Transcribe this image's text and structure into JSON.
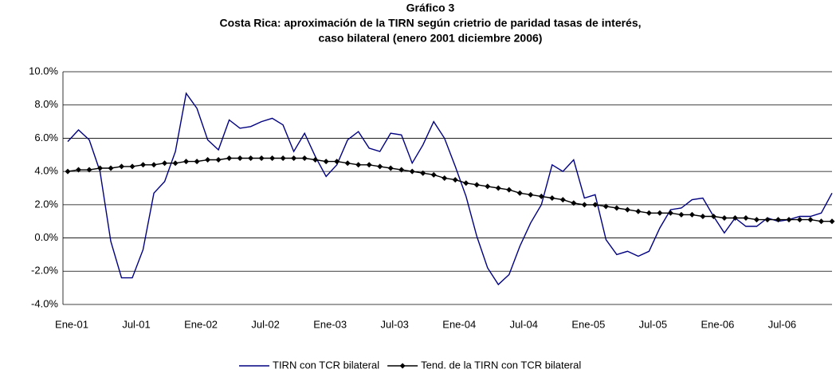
{
  "chart_data": {
    "type": "line",
    "title": "Gráfico 3",
    "subtitle": [
      "Costa Rica: aproximación de la TIRN según crietrio de paridad tasas de interés,",
      "caso bilateral (enero 2001 diciembre 2006)"
    ],
    "categories": [
      "Ene-01",
      null,
      null,
      null,
      null,
      null,
      "Jul-01",
      null,
      null,
      null,
      null,
      null,
      "Ene-02",
      null,
      null,
      null,
      null,
      null,
      "Jul-02",
      null,
      null,
      null,
      null,
      null,
      "Ene-03",
      null,
      null,
      null,
      null,
      null,
      "Jul-03",
      null,
      null,
      null,
      null,
      null,
      "Ene-04",
      null,
      null,
      null,
      null,
      null,
      "Jul-04",
      null,
      null,
      null,
      null,
      null,
      "Ene-05",
      null,
      null,
      null,
      null,
      null,
      "Jul-05",
      null,
      null,
      null,
      null,
      null,
      "Ene-06",
      null,
      null,
      null,
      null,
      null,
      "Jul-06",
      null,
      null,
      null,
      null,
      null
    ],
    "series": [
      {
        "name": "TIRN con TCR bilateral",
        "color": "#000080",
        "marker": false,
        "values": [
          5.8,
          6.5,
          5.9,
          4.0,
          -0.2,
          -2.4,
          -2.4,
          -0.7,
          2.7,
          3.4,
          5.2,
          8.7,
          7.8,
          5.9,
          5.3,
          7.1,
          6.6,
          6.7,
          7.0,
          7.2,
          6.8,
          5.2,
          6.3,
          4.9,
          3.7,
          4.4,
          5.9,
          6.4,
          5.4,
          5.2,
          6.3,
          6.2,
          4.5,
          5.6,
          7.0,
          6.0,
          4.3,
          2.5,
          0.1,
          -1.8,
          -2.8,
          -2.2,
          -0.5,
          0.9,
          2.0,
          4.4,
          4.0,
          4.7,
          2.4,
          2.6,
          -0.1,
          -1.0,
          -0.8,
          -1.1,
          -0.8,
          0.6,
          1.7,
          1.8,
          2.3,
          2.4,
          1.3,
          0.3,
          1.2,
          0.7,
          0.7,
          1.2,
          1.0,
          1.1,
          1.3,
          1.3,
          1.5,
          2.7
        ]
      },
      {
        "name": "Tend. de la TIRN con TCR bilateral",
        "color": "#000000",
        "marker": true,
        "values": [
          4.0,
          4.1,
          4.1,
          4.2,
          4.2,
          4.3,
          4.3,
          4.4,
          4.4,
          4.5,
          4.5,
          4.6,
          4.6,
          4.7,
          4.7,
          4.8,
          4.8,
          4.8,
          4.8,
          4.8,
          4.8,
          4.8,
          4.8,
          4.7,
          4.6,
          4.6,
          4.5,
          4.4,
          4.4,
          4.3,
          4.2,
          4.1,
          4.0,
          3.9,
          3.8,
          3.6,
          3.5,
          3.3,
          3.2,
          3.1,
          3.0,
          2.9,
          2.7,
          2.6,
          2.5,
          2.4,
          2.3,
          2.1,
          2.0,
          2.0,
          1.9,
          1.8,
          1.7,
          1.6,
          1.5,
          1.5,
          1.5,
          1.4,
          1.4,
          1.3,
          1.3,
          1.2,
          1.2,
          1.2,
          1.1,
          1.1,
          1.1,
          1.1,
          1.1,
          1.1,
          1.0,
          1.0
        ]
      }
    ],
    "ylim": [
      -4,
      10
    ],
    "yticks": [
      {
        "value": -4,
        "label": "-4.0%"
      },
      {
        "value": -2,
        "label": "-2.0%"
      },
      {
        "value": 0,
        "label": "0.0%"
      },
      {
        "value": 2,
        "label": "2.0%"
      },
      {
        "value": 4,
        "label": "4.0%"
      },
      {
        "value": 6,
        "label": "6.0%"
      },
      {
        "value": 8,
        "label": "8.0%"
      },
      {
        "value": 10,
        "label": "10.0%"
      }
    ],
    "grid": true,
    "legend": "bottom"
  }
}
